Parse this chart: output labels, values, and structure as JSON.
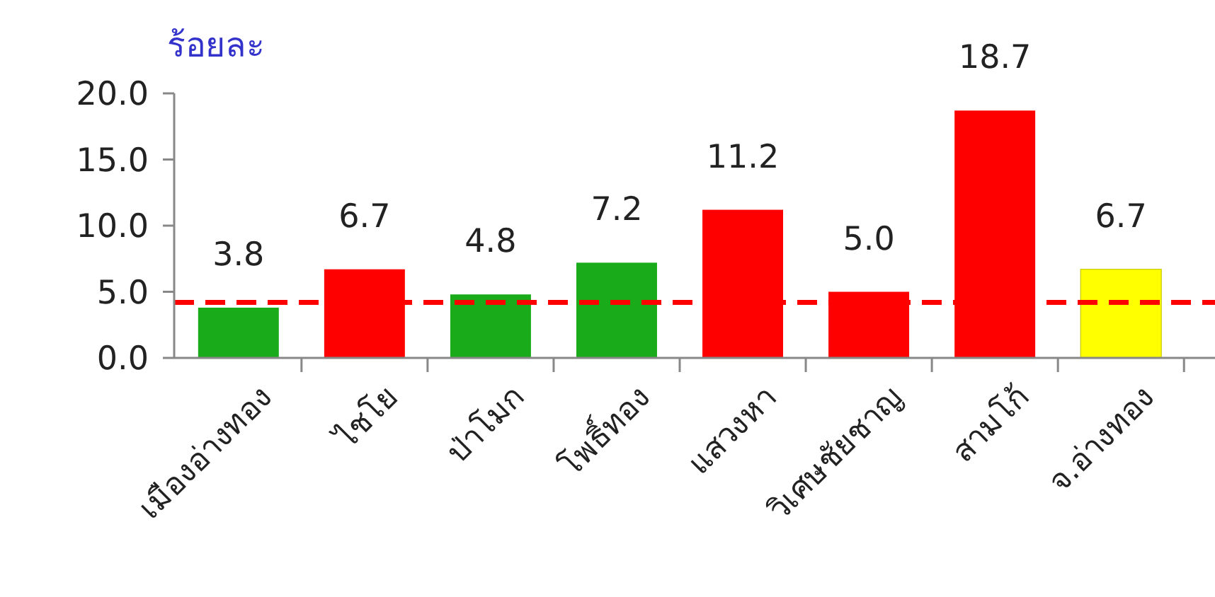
{
  "chart_data": {
    "type": "bar",
    "ylabel": "ร้อยละ",
    "categories": [
      "เมืองอ่างทอง",
      "ไชโย",
      "ป่าโมก",
      "โพธิ์ทอง",
      "แสวงหา",
      "วิเศษชัยชาญ",
      "สามโก้",
      "จ.อ่างทอง"
    ],
    "values": [
      3.8,
      6.7,
      4.8,
      7.2,
      11.2,
      5.0,
      18.7,
      6.7
    ],
    "colors": [
      "#1aab1a",
      "#ff0000",
      "#1aab1a",
      "#1aab1a",
      "#ff0000",
      "#ff0000",
      "#ff0000",
      "#ffff00"
    ],
    "value_labels": [
      "3.8",
      "6.7",
      "4.8",
      "7.2",
      "11.2",
      "5.0",
      "18.7",
      "6.7"
    ],
    "ylim": [
      0,
      20
    ],
    "yticks": [
      {
        "value": 0,
        "label": "0.0"
      },
      {
        "value": 5,
        "label": "5.0"
      },
      {
        "value": 10,
        "label": "10.0"
      },
      {
        "value": 15,
        "label": "15.0"
      },
      {
        "value": 20,
        "label": "20.0"
      }
    ],
    "ref_lines": [
      {
        "axis": "y",
        "value": 4.2,
        "color": "#ff0000",
        "line_style": "dashed"
      }
    ],
    "grid": false
  }
}
